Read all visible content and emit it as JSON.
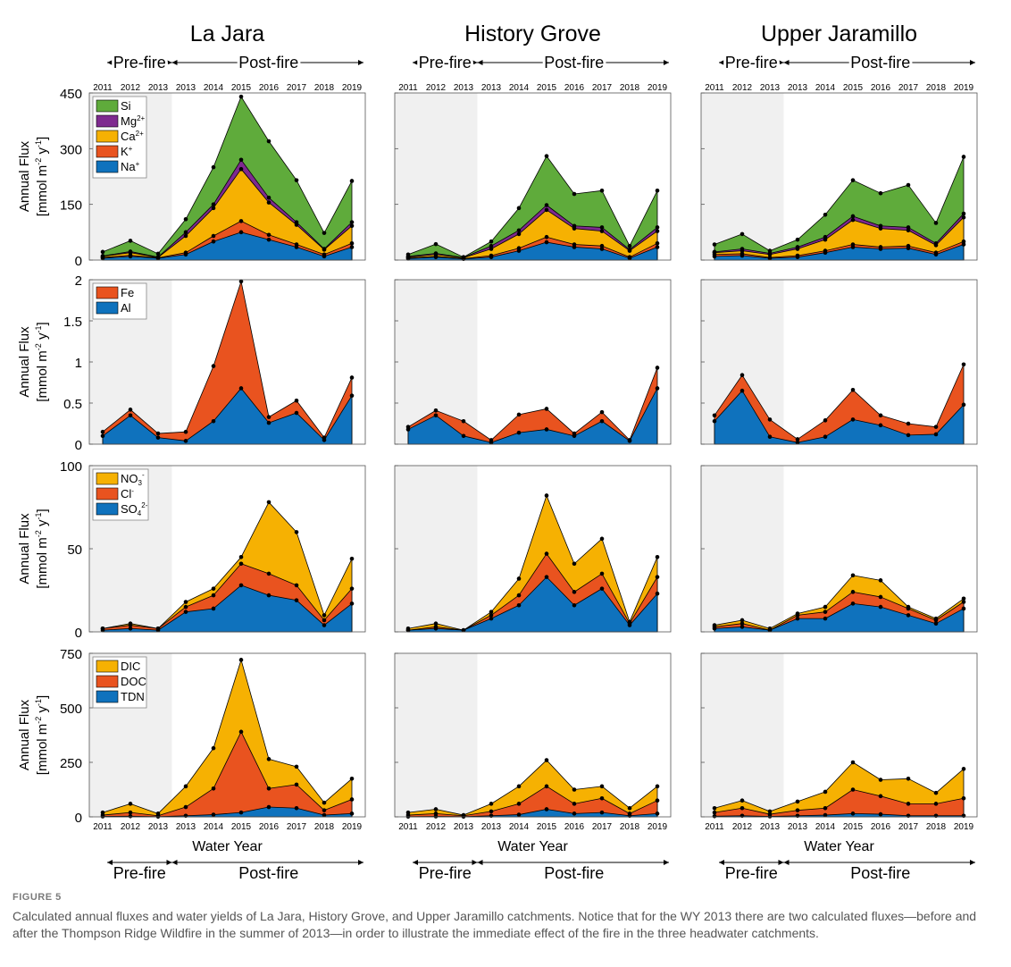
{
  "figure": {
    "label": "FIGURE 5",
    "caption": "Calculated annual fluxes and water yields of La Jara, History Grove, and Upper Jaramillo catchments. Notice that for the WY 2013 there are two calculated fluxes—before and after the Thompson Ridge Wildfire in the summer of 2013—in order to illustrate the immediate effect of the fire in the three headwater catchments."
  },
  "labels": {
    "pre_fire": "Pre-fire",
    "post_fire": "Post-fire",
    "xlabel": "Water Year",
    "ylabel_line1": "Annual Flux",
    "ylabel_line2_prefix": "[mmol m",
    "ylabel_exp1": "-2",
    "ylabel_mid": " y",
    "ylabel_exp2": "-1",
    "ylabel_end": "]"
  },
  "colors": {
    "Si": "#5fab3b",
    "Mg": "#7e2a8f",
    "Ca": "#f6b102",
    "K": "#e9531f",
    "Na": "#0f72bd",
    "Fe": "#e9531f",
    "Al": "#0f72bd",
    "NO3": "#f6b102",
    "Cl": "#e9531f",
    "SO4": "#0f72bd",
    "DIC": "#f6b102",
    "DOC": "#e9531f",
    "TDN": "#0f72bd",
    "prefire_shade": "#f0f0f0"
  },
  "chart_data": {
    "type": "area",
    "stacked": true,
    "x": [
      "2011",
      "2012",
      "2013",
      "2013",
      "2014",
      "2015",
      "2016",
      "2017",
      "2018",
      "2019"
    ],
    "prefire_points": 3,
    "catchments": [
      "La Jara",
      "History Grove",
      "Upper Jaramillo"
    ],
    "rows": [
      {
        "id": "cations",
        "ylim": [
          0,
          450
        ],
        "yticks": [
          "0",
          "150",
          "300",
          "450"
        ],
        "legend": [
          {
            "key": "Si",
            "base": "Si",
            "sup": ""
          },
          {
            "key": "Mg",
            "base": "Mg",
            "sup": "2+"
          },
          {
            "key": "Ca",
            "base": "Ca",
            "sup": "2+"
          },
          {
            "key": "K",
            "base": "K",
            "sup": "+"
          },
          {
            "key": "Na",
            "base": "Na",
            "sup": "+"
          }
        ],
        "stack_order": [
          "Na",
          "K",
          "Ca",
          "Mg",
          "Si"
        ],
        "series": {
          "La Jara": {
            "Na": [
              5,
              10,
              5,
              15,
              50,
              75,
              55,
              35,
              10,
              35
            ],
            "K": [
              7,
              13,
              6,
              20,
              65,
              105,
              68,
              42,
              15,
              45
            ],
            "Ca": [
              10,
              20,
              7,
              65,
              140,
              245,
              155,
              95,
              28,
              92
            ],
            "Mg": [
              11,
              23,
              8,
              75,
              150,
              270,
              168,
              102,
              30,
              102
            ],
            "Si": [
              22,
              52,
              17,
              110,
              250,
              440,
              320,
              215,
              73,
              213
            ]
          },
          "History Grove": {
            "Na": [
              4,
              8,
              3,
              8,
              25,
              48,
              35,
              30,
              5,
              35
            ],
            "K": [
              6,
              10,
              4,
              12,
              32,
              62,
              42,
              38,
              8,
              45
            ],
            "Ca": [
              8,
              15,
              6,
              30,
              70,
              135,
              85,
              78,
              25,
              78
            ],
            "Mg": [
              10,
              18,
              7,
              38,
              80,
              148,
              92,
              88,
              28,
              88
            ],
            "Si": [
              15,
              43,
              8,
              50,
              140,
              280,
              178,
              187,
              38,
              187
            ]
          },
          "Upper Jaramillo": {
            "Na": [
              10,
              12,
              5,
              8,
              20,
              35,
              30,
              32,
              15,
              42
            ],
            "K": [
              15,
              17,
              7,
              12,
              25,
              42,
              35,
              38,
              20,
              50
            ],
            "Ca": [
              20,
              25,
              15,
              30,
              55,
              108,
              85,
              80,
              40,
              115
            ],
            "Mg": [
              22,
              30,
              18,
              35,
              62,
              118,
              92,
              88,
              45,
              125
            ],
            "Si": [
              42,
              70,
              25,
              55,
              122,
              215,
              180,
              202,
              100,
              278
            ]
          }
        }
      },
      {
        "id": "metals",
        "ylim": [
          0,
          2
        ],
        "yticks": [
          "0",
          "0.5",
          "1",
          "1.5",
          "2"
        ],
        "legend": [
          {
            "key": "Fe",
            "base": "Fe",
            "sup": ""
          },
          {
            "key": "Al",
            "base": "Al",
            "sup": ""
          }
        ],
        "stack_order": [
          "Al",
          "Fe"
        ],
        "series": {
          "La Jara": {
            "Al": [
              0.1,
              0.35,
              0.08,
              0.04,
              0.28,
              0.68,
              0.26,
              0.38,
              0.05,
              0.59
            ],
            "Fe": [
              0.15,
              0.42,
              0.13,
              0.15,
              0.95,
              1.98,
              0.33,
              0.53,
              0.08,
              0.81
            ]
          },
          "History Grove": {
            "Al": [
              0.18,
              0.35,
              0.1,
              0.02,
              0.14,
              0.18,
              0.1,
              0.28,
              0.04,
              0.68
            ],
            "Fe": [
              0.21,
              0.41,
              0.28,
              0.05,
              0.36,
              0.43,
              0.13,
              0.39,
              0.05,
              0.93
            ]
          },
          "Upper Jaramillo": {
            "Al": [
              0.28,
              0.65,
              0.09,
              0.02,
              0.09,
              0.3,
              0.23,
              0.11,
              0.12,
              0.48
            ],
            "Fe": [
              0.35,
              0.84,
              0.3,
              0.06,
              0.29,
              0.66,
              0.35,
              0.25,
              0.21,
              0.97
            ]
          }
        }
      },
      {
        "id": "anions",
        "ylim": [
          0,
          100
        ],
        "yticks": [
          "0",
          "50",
          "100"
        ],
        "legend": [
          {
            "key": "NO3",
            "base": "NO",
            "sub": "3",
            "sup": "-"
          },
          {
            "key": "Cl",
            "base": "Cl",
            "sup": "-"
          },
          {
            "key": "SO4",
            "base": "SO",
            "sub": "4",
            "sup": "2-"
          }
        ],
        "stack_order": [
          "SO4",
          "Cl",
          "NO3"
        ],
        "series": {
          "La Jara": {
            "SO4": [
              1,
              2,
              1,
              12,
              14,
              28,
              22,
              19,
              4,
              17
            ],
            "Cl": [
              2,
              4,
              2,
              15,
              22,
              41,
              35,
              28,
              7,
              26
            ],
            "NO3": [
              2,
              5,
              2,
              18,
              26,
              45,
              78,
              60,
              10,
              44
            ]
          },
          "History Grove": {
            "SO4": [
              1,
              2,
              1,
              8,
              16,
              33,
              16,
              26,
              4,
              23
            ],
            "Cl": [
              1,
              3,
              1,
              10,
              22,
              47,
              24,
              35,
              5,
              33
            ],
            "NO3": [
              2,
              5,
              1,
              12,
              32,
              82,
              41,
              56,
              6,
              45
            ]
          },
          "Upper Jaramillo": {
            "SO4": [
              2,
              3,
              1,
              8,
              8,
              17,
              15,
              10,
              5,
              14
            ],
            "Cl": [
              3,
              5,
              1,
              10,
              12,
              24,
              21,
              14,
              7,
              18
            ],
            "NO3": [
              4,
              7,
              2,
              11,
              15,
              34,
              31,
              15,
              8,
              20
            ]
          }
        }
      },
      {
        "id": "carbon",
        "ylim": [
          0,
          750
        ],
        "yticks": [
          "0",
          "250",
          "500",
          "750"
        ],
        "legend": [
          {
            "key": "DIC",
            "base": "DIC",
            "sup": ""
          },
          {
            "key": "DOC",
            "base": "DOC",
            "sup": ""
          },
          {
            "key": "TDN",
            "base": "TDN",
            "sup": ""
          }
        ],
        "stack_order": [
          "TDN",
          "DOC",
          "DIC"
        ],
        "series": {
          "La Jara": {
            "TDN": [
              2,
              3,
              1,
              5,
              10,
              20,
              45,
              40,
              8,
              15
            ],
            "DOC": [
              8,
              20,
              5,
              45,
              130,
              390,
              130,
              148,
              30,
              80
            ],
            "DIC": [
              20,
              60,
              15,
              140,
              315,
              720,
              265,
              230,
              65,
              175
            ]
          },
          "History Grove": {
            "TDN": [
              1,
              2,
              1,
              5,
              10,
              35,
              15,
              20,
              5,
              15
            ],
            "DOC": [
              8,
              15,
              5,
              25,
              60,
              140,
              60,
              85,
              15,
              75
            ],
            "DIC": [
              20,
              35,
              8,
              60,
              140,
              260,
              125,
              140,
              40,
              140
            ]
          },
          "Upper Jaramillo": {
            "TDN": [
              3,
              5,
              2,
              5,
              8,
              15,
              12,
              5,
              5,
              5
            ],
            "DOC": [
              20,
              40,
              12,
              30,
              40,
              125,
              95,
              60,
              60,
              85
            ],
            "DIC": [
              40,
              75,
              25,
              70,
              115,
              250,
              170,
              175,
              110,
              220
            ]
          }
        }
      }
    ]
  }
}
